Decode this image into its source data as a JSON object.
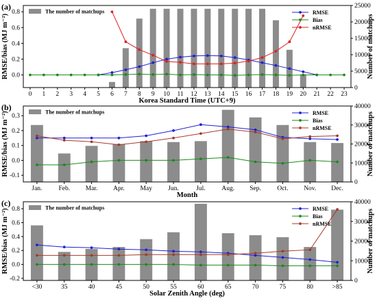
{
  "colors": {
    "bars": "#8c8c8c",
    "rmse": "#1f1fd6",
    "bias": "#1a8a1a",
    "nrmse": "#e0201f",
    "nrmse_c": "#a63a2a"
  },
  "legend_labels": {
    "rmse": "RMSE",
    "bias": "Bias",
    "nrmse": "nRMSE",
    "matchups": "The number of matchups"
  },
  "chart_data": [
    {
      "type": "bar+line",
      "panel_label": "(a)",
      "xlabel": "Korea Standard Time (UTC+9)",
      "ylabel_left": "RMSE/bias (MJ m⁻²)",
      "ylabel_right": "Number of matchups",
      "categories": [
        "0",
        "1",
        "2",
        "3",
        "4",
        "5",
        "6",
        "7",
        "8",
        "9",
        "10",
        "11",
        "12",
        "13",
        "14",
        "15",
        "16",
        "17",
        "18",
        "19",
        "20",
        "21",
        "22",
        "23"
      ],
      "y_ticks": [
        "0.0",
        "0.2",
        "0.4",
        "0.6",
        "0.8"
      ],
      "y2_ticks": [
        "0",
        "5000",
        "10000",
        "15000",
        "20000",
        "25000"
      ],
      "ylim": [
        -0.16,
        0.88
      ],
      "y2lim": [
        0,
        25000
      ],
      "bars": [
        null,
        null,
        null,
        null,
        null,
        null,
        1700,
        12000,
        21000,
        24000,
        24000,
        24000,
        24000,
        24000,
        24000,
        24000,
        24000,
        24000,
        20500,
        11500,
        4000,
        null,
        null,
        null
      ],
      "series": [
        {
          "name": "RMSE",
          "key": "rmse",
          "values": [
            null,
            null,
            null,
            null,
            null,
            0.0,
            0.03,
            0.065,
            0.105,
            0.155,
            0.2,
            0.225,
            0.24,
            0.245,
            0.24,
            0.22,
            0.19,
            0.155,
            0.12,
            0.08,
            0.04,
            0.0,
            null,
            null
          ]
        },
        {
          "name": "Bias",
          "key": "bias",
          "values": [
            0,
            0,
            0,
            0,
            0,
            0,
            0,
            0.005,
            0.01,
            0.005,
            0.01,
            0,
            0.005,
            0,
            0,
            -0.005,
            0,
            0.005,
            0,
            -0.005,
            0,
            0,
            0,
            0
          ]
        },
        {
          "name": "nRMSE",
          "key": "nrmse",
          "values": [
            null,
            null,
            null,
            null,
            null,
            null,
            0.8,
            0.42,
            0.32,
            0.25,
            0.17,
            0.16,
            0.14,
            0.14,
            0.14,
            0.15,
            0.175,
            0.22,
            0.3,
            0.42,
            0.75,
            null,
            null,
            null
          ]
        }
      ]
    },
    {
      "type": "bar+line",
      "panel_label": "(b)",
      "xlabel": "Month",
      "ylabel_left": "RMSE/bias (MJ m⁻²)",
      "ylabel_right": "Number of matchups",
      "categories": [
        "Jan.",
        "Feb.",
        "Mar.",
        "Apr.",
        "May",
        "Jun.",
        "Jul.",
        "Aug.",
        "Sep.",
        "Oct.",
        "Nov.",
        "Dec."
      ],
      "y_ticks": [
        "-0.1",
        "0.0",
        "0.1",
        "0.2",
        "0.3"
      ],
      "y2_ticks": [
        "0",
        "10000",
        "20000",
        "30000",
        "40000"
      ],
      "ylim": [
        -0.145,
        0.365
      ],
      "y2lim": [
        0,
        40000
      ],
      "bars": [
        30000,
        15000,
        19000,
        20000,
        21500,
        21000,
        21500,
        38000,
        34000,
        30000,
        21000,
        20500
      ],
      "series": [
        {
          "name": "RMSE",
          "key": "rmse",
          "values": [
            0.15,
            0.15,
            0.15,
            0.15,
            0.165,
            0.2,
            0.24,
            0.225,
            0.205,
            0.155,
            0.145,
            0.14
          ]
        },
        {
          "name": "Bias",
          "key": "bias",
          "values": [
            -0.03,
            -0.03,
            -0.01,
            0.0,
            0.0,
            0.0,
            0.01,
            0.02,
            -0.01,
            -0.02,
            0.0,
            -0.01
          ]
        },
        {
          "name": "nRMSE",
          "key": "nrmse",
          "values": [
            0.165,
            0.135,
            0.125,
            0.105,
            0.125,
            0.15,
            0.18,
            0.21,
            0.19,
            0.145,
            0.16,
            0.165
          ]
        }
      ]
    },
    {
      "type": "bar+line",
      "panel_label": "(c)",
      "xlabel": "Solar Zenith Angle (deg)",
      "ylabel_left": "RMSE/bias (MJ m⁻²)",
      "ylabel_right": "Number of matchups",
      "categories": [
        "<30",
        "35",
        "40",
        "45",
        "50",
        "55",
        "60",
        "65",
        "70",
        "75",
        "80",
        ">85"
      ],
      "y_ticks": [
        "-0.2",
        "0.0",
        "0.2",
        "0.4",
        "0.6",
        "0.8"
      ],
      "y2_ticks": [
        "0",
        "10000",
        "20000",
        "30000",
        "40000"
      ],
      "ylim": [
        -0.23,
        0.9
      ],
      "y2lim": [
        0,
        40000
      ],
      "bars": [
        28000,
        14500,
        16000,
        17000,
        21000,
        24500,
        39000,
        24000,
        23000,
        22000,
        17000,
        36000
      ],
      "series": [
        {
          "name": "RMSE",
          "key": "rmse",
          "values": [
            0.28,
            0.25,
            0.24,
            0.22,
            0.21,
            0.19,
            0.18,
            0.16,
            0.13,
            0.1,
            0.07,
            0.03
          ]
        },
        {
          "name": "Bias",
          "key": "bias",
          "values": [
            0.0,
            0.0,
            0.0,
            0.0,
            0.0,
            0.0,
            -0.01,
            -0.01,
            -0.01,
            -0.02,
            -0.02,
            -0.02
          ]
        },
        {
          "name": "nRMSE",
          "key": "nrmse",
          "values": [
            0.13,
            0.13,
            0.13,
            0.13,
            0.14,
            0.14,
            0.14,
            0.14,
            0.16,
            0.19,
            0.21,
            0.79
          ]
        }
      ]
    }
  ]
}
